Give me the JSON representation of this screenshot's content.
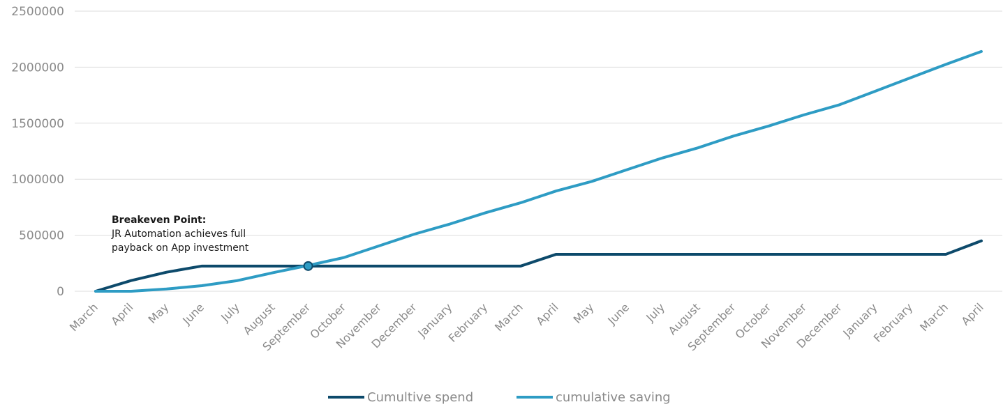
{
  "chart_data": {
    "type": "line",
    "categories": [
      "March",
      "April",
      "May",
      "June",
      "July",
      "August",
      "September",
      "October",
      "November",
      "December",
      "January",
      "February",
      "March",
      "April",
      "May",
      "June",
      "July",
      "August",
      "September",
      "October",
      "November",
      "December",
      "January",
      "February",
      "March",
      "April"
    ],
    "series": [
      {
        "name": "Cumultive spend",
        "color": "#0d4a6b",
        "values": [
          0,
          95000,
          170000,
          225000,
          225000,
          225000,
          225000,
          225000,
          225000,
          225000,
          225000,
          225000,
          225000,
          330000,
          330000,
          330000,
          330000,
          330000,
          330000,
          330000,
          330000,
          330000,
          330000,
          330000,
          330000,
          450000
        ]
      },
      {
        "name": "cumulative saving",
        "color": "#2e9cc4",
        "values": [
          0,
          0,
          20000,
          50000,
          95000,
          165000,
          230000,
          300000,
          405000,
          510000,
          600000,
          700000,
          790000,
          895000,
          980000,
          1085000,
          1190000,
          1280000,
          1385000,
          1475000,
          1575000,
          1665000,
          1785000,
          1905000,
          2025000,
          2140000
        ]
      }
    ],
    "ylim": [
      0,
      2500000
    ],
    "yticks": [
      "0",
      "500000",
      "1000000",
      "1500000",
      "2000000",
      "2500000"
    ],
    "grid": true,
    "legend_position": "bottom",
    "annotation": {
      "title": "Breakeven Point:",
      "lines": [
        "JR Automation achieves full",
        "payback on App investment"
      ],
      "category_index": 6,
      "value": 225000
    }
  }
}
